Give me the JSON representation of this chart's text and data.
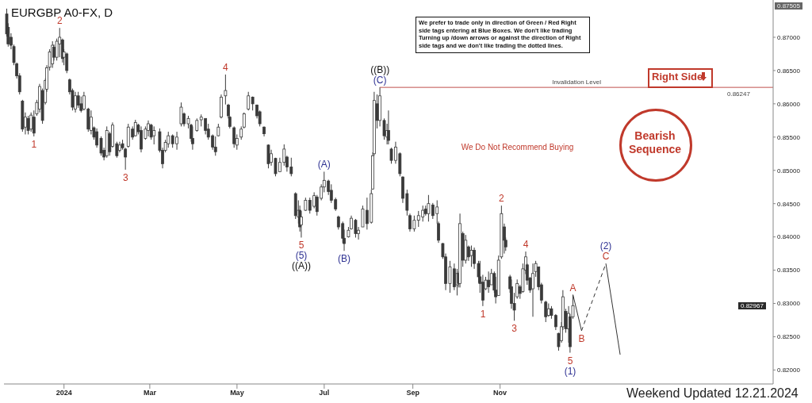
{
  "chart_data": {
    "type": "candlestick",
    "title": "EURGBP A0-FX, D",
    "color": "#3a3a3a",
    "x": [
      "2023-11-22",
      "2023-11-23",
      "2023-11-25",
      "2023-11-27",
      "2023-11-29",
      "2023-12-01",
      "2023-12-03",
      "2023-12-05",
      "2023-12-07",
      "2023-12-09",
      "2023-12-11",
      "2023-12-13",
      "2023-12-15",
      "2023-12-17",
      "2023-12-19",
      "2023-12-20",
      "2023-12-22",
      "2023-12-24",
      "2023-12-25",
      "2023-12-27",
      "2023-12-29",
      "2023-12-31",
      "2024-01-01",
      "2024-01-03",
      "2024-01-05",
      "2024-01-07",
      "2024-01-09",
      "2024-01-11",
      "2024-01-13",
      "2024-01-15",
      "2024-01-18",
      "2024-01-20",
      "2024-01-22",
      "2024-01-24",
      "2024-01-27",
      "2024-01-29",
      "2024-01-31",
      "2024-02-02",
      "2024-02-04",
      "2024-02-07",
      "2024-02-09",
      "2024-02-11",
      "2024-02-13",
      "2024-02-15",
      "2024-02-18",
      "2024-02-20",
      "2024-02-22",
      "2024-02-24",
      "2024-02-27",
      "2024-02-29",
      "2024-03-02",
      "2024-03-04",
      "2024-03-08",
      "2024-03-10",
      "2024-03-12",
      "2024-03-14",
      "2024-03-17",
      "2024-03-20",
      "2024-03-23",
      "2024-03-25",
      "2024-03-28",
      "2024-03-30",
      "2024-03-31",
      "2024-04-03",
      "2024-04-06",
      "2024-04-09",
      "2024-04-11",
      "2024-04-14",
      "2024-04-16",
      "2024-04-18",
      "2024-04-20",
      "2024-04-23",
      "2024-04-25",
      "2024-04-26",
      "2024-04-29",
      "2024-05-01",
      "2024-05-04",
      "2024-05-06",
      "2024-05-09",
      "2024-05-12",
      "2024-05-15",
      "2024-05-17",
      "2024-05-20",
      "2024-05-23",
      "2024-05-25",
      "2024-05-28",
      "2024-05-31",
      "2024-06-03",
      "2024-06-05",
      "2024-06-08",
      "2024-06-11",
      "2024-06-13",
      "2024-06-14",
      "2024-06-15",
      "2024-06-18",
      "2024-06-21",
      "2024-06-24",
      "2024-06-26",
      "2024-06-29",
      "2024-07-01",
      "2024-07-04",
      "2024-07-06",
      "2024-07-09",
      "2024-07-11",
      "2024-07-14",
      "2024-07-15",
      "2024-07-18",
      "2024-07-20",
      "2024-07-23",
      "2024-07-25",
      "2024-07-28",
      "2024-07-31",
      "2024-08-03",
      "2024-08-04",
      "2024-08-05",
      "2024-08-07",
      "2024-08-09",
      "2024-08-12",
      "2024-08-14",
      "2024-08-15",
      "2024-08-17",
      "2024-08-20",
      "2024-08-23",
      "2024-08-25",
      "2024-08-28",
      "2024-08-30",
      "2024-09-02",
      "2024-09-05",
      "2024-09-08",
      "2024-09-10",
      "2024-09-12",
      "2024-09-15",
      "2024-09-18",
      "2024-09-19",
      "2024-09-22",
      "2024-09-24",
      "2024-09-27",
      "2024-09-30",
      "2024-10-02",
      "2024-10-03",
      "2024-10-04",
      "2024-10-06",
      "2024-10-08",
      "2024-10-10",
      "2024-10-12",
      "2024-10-14",
      "2024-10-17",
      "2024-10-18",
      "2024-10-20",
      "2024-10-22",
      "2024-10-24",
      "2024-10-26",
      "2024-10-28",
      "2024-10-29",
      "2024-10-31",
      "2024-11-02",
      "2024-11-04",
      "2024-11-05",
      "2024-11-08",
      "2024-11-09",
      "2024-11-11",
      "2024-11-13",
      "2024-11-15",
      "2024-11-17",
      "2024-11-19",
      "2024-11-20",
      "2024-11-22",
      "2024-11-24",
      "2024-11-26",
      "2024-11-28",
      "2024-11-30",
      "2024-12-03",
      "2024-12-05",
      "2024-12-07",
      "2024-12-10",
      "2024-12-12",
      "2024-12-14",
      "2024-12-15",
      "2024-12-17",
      "2024-12-19",
      "2024-12-20",
      "2024-12-22"
    ],
    "ohlc": [
      [
        0.8735,
        0.8743,
        0.8701,
        0.8705
      ],
      [
        0.8715,
        0.8721,
        0.8686,
        0.869
      ],
      [
        0.87,
        0.8706,
        0.8682,
        0.8688
      ],
      [
        0.8686,
        0.8689,
        0.8658,
        0.8662
      ],
      [
        0.866,
        0.8662,
        0.8638,
        0.8642
      ],
      [
        0.8642,
        0.8646,
        0.8614,
        0.8618
      ],
      [
        0.8604,
        0.8606,
        0.8558,
        0.8562
      ],
      [
        0.8565,
        0.8587,
        0.8554,
        0.858
      ],
      [
        0.8578,
        0.8582,
        0.8554,
        0.856
      ],
      [
        0.8562,
        0.8587,
        0.8558,
        0.8583
      ],
      [
        0.858,
        0.859,
        0.8551,
        0.8556
      ],
      [
        0.8585,
        0.8606,
        0.8582,
        0.8602
      ],
      [
        0.8592,
        0.863,
        0.8587,
        0.8626
      ],
      [
        0.862,
        0.8623,
        0.857,
        0.8575
      ],
      [
        0.8602,
        0.8638,
        0.8599,
        0.8635
      ],
      [
        0.8622,
        0.8658,
        0.8618,
        0.8654
      ],
      [
        0.8655,
        0.8682,
        0.865,
        0.8678
      ],
      [
        0.866,
        0.8694,
        0.8654,
        0.8688
      ],
      [
        0.8685,
        0.8689,
        0.8665,
        0.867
      ],
      [
        0.867,
        0.8698,
        0.8665,
        0.8694
      ],
      [
        0.869,
        0.8714,
        0.867,
        0.87
      ],
      [
        0.8696,
        0.8698,
        0.8662,
        0.8668
      ],
      [
        0.867,
        0.8682,
        0.8658,
        0.8678
      ],
      [
        0.8675,
        0.8677,
        0.8646,
        0.865
      ],
      [
        0.8636,
        0.8638,
        0.8614,
        0.8618
      ],
      [
        0.862,
        0.8623,
        0.859,
        0.8595
      ],
      [
        0.8592,
        0.8618,
        0.8587,
        0.8612
      ],
      [
        0.8612,
        0.8618,
        0.8594,
        0.8598
      ],
      [
        0.86,
        0.8611,
        0.8587,
        0.859
      ],
      [
        0.8592,
        0.8618,
        0.859,
        0.8612
      ],
      [
        0.8592,
        0.8594,
        0.8558,
        0.8562
      ],
      [
        0.856,
        0.859,
        0.8554,
        0.858
      ],
      [
        0.8564,
        0.8566,
        0.8546,
        0.855
      ],
      [
        0.8558,
        0.8563,
        0.8534,
        0.8538
      ],
      [
        0.8548,
        0.8551,
        0.8522,
        0.8526
      ],
      [
        0.853,
        0.8534,
        0.8515,
        0.852
      ],
      [
        0.8522,
        0.8566,
        0.8519,
        0.856
      ],
      [
        0.8555,
        0.8558,
        0.8522,
        0.8528
      ],
      [
        0.8536,
        0.8572,
        0.8534,
        0.8568
      ],
      [
        0.854,
        0.8543,
        0.8519,
        0.8522
      ],
      [
        0.853,
        0.8543,
        0.8527,
        0.8538
      ],
      [
        0.854,
        0.8546,
        0.8531,
        0.8534
      ],
      [
        0.8532,
        0.8534,
        0.8501,
        0.852
      ],
      [
        0.8536,
        0.857,
        0.8534,
        0.8565
      ],
      [
        0.8562,
        0.8566,
        0.8546,
        0.855
      ],
      [
        0.8552,
        0.8576,
        0.8551,
        0.8572
      ],
      [
        0.8568,
        0.857,
        0.8554,
        0.8558
      ],
      [
        0.856,
        0.8566,
        0.8527,
        0.8532
      ],
      [
        0.8548,
        0.8566,
        0.8546,
        0.8562
      ],
      [
        0.856,
        0.8575,
        0.8551,
        0.857
      ],
      [
        0.8568,
        0.857,
        0.8546,
        0.855
      ],
      [
        0.8552,
        0.8566,
        0.8539,
        0.856
      ],
      [
        0.8558,
        0.8563,
        0.8527,
        0.853
      ],
      [
        0.853,
        0.8534,
        0.8503,
        0.851
      ],
      [
        0.853,
        0.8546,
        0.8527,
        0.8542
      ],
      [
        0.854,
        0.8558,
        0.8534,
        0.8552
      ],
      [
        0.8552,
        0.8554,
        0.8534,
        0.854
      ],
      [
        0.854,
        0.8558,
        0.8531,
        0.855
      ],
      [
        0.857,
        0.8602,
        0.8566,
        0.8595
      ],
      [
        0.8585,
        0.8587,
        0.8566,
        0.857
      ],
      [
        0.857,
        0.8582,
        0.8563,
        0.8578
      ],
      [
        0.8568,
        0.857,
        0.8543,
        0.8548
      ],
      [
        0.8548,
        0.8566,
        0.8531,
        0.854
      ],
      [
        0.856,
        0.8578,
        0.8558,
        0.8575
      ],
      [
        0.8576,
        0.8584,
        0.8566,
        0.858
      ],
      [
        0.8578,
        0.8578,
        0.8554,
        0.856
      ],
      [
        0.8562,
        0.857,
        0.8546,
        0.855
      ],
      [
        0.8552,
        0.8554,
        0.8531,
        0.8535
      ],
      [
        0.8535,
        0.8551,
        0.8522,
        0.8528
      ],
      [
        0.8552,
        0.857,
        0.8551,
        0.8565
      ],
      [
        0.858,
        0.8614,
        0.8578,
        0.861
      ],
      [
        0.8612,
        0.8644,
        0.8599,
        0.862
      ],
      [
        0.8598,
        0.86,
        0.8578,
        0.8582
      ],
      [
        0.858,
        0.8582,
        0.8563,
        0.8566
      ],
      [
        0.8564,
        0.8566,
        0.8534,
        0.854
      ],
      [
        0.8538,
        0.8554,
        0.8531,
        0.8548
      ],
      [
        0.855,
        0.8566,
        0.8546,
        0.8562
      ],
      [
        0.8565,
        0.8587,
        0.8563,
        0.8585
      ],
      [
        0.8592,
        0.8618,
        0.859,
        0.8612
      ],
      [
        0.861,
        0.8611,
        0.859,
        0.86
      ],
      [
        0.8598,
        0.8599,
        0.8578,
        0.8582
      ],
      [
        0.8588,
        0.859,
        0.8566,
        0.857
      ],
      [
        0.8565,
        0.8566,
        0.8551,
        0.8555
      ],
      [
        0.8538,
        0.8539,
        0.8503,
        0.851
      ],
      [
        0.8512,
        0.8531,
        0.8507,
        0.8525
      ],
      [
        0.8518,
        0.8519,
        0.8491,
        0.8495
      ],
      [
        0.8498,
        0.8519,
        0.8498,
        0.8512
      ],
      [
        0.8512,
        0.8539,
        0.8507,
        0.8532
      ],
      [
        0.852,
        0.8522,
        0.8498,
        0.8505
      ],
      [
        0.8505,
        0.8519,
        0.8491,
        0.8495
      ],
      [
        0.8465,
        0.8467,
        0.8427,
        0.8432
      ],
      [
        0.843,
        0.8455,
        0.842,
        0.844
      ],
      [
        0.844,
        0.8447,
        0.8408,
        0.8415
      ],
      [
        0.8418,
        0.8439,
        0.8399,
        0.843
      ],
      [
        0.844,
        0.8459,
        0.8439,
        0.8455
      ],
      [
        0.8455,
        0.8459,
        0.8435,
        0.844
      ],
      [
        0.8446,
        0.8467,
        0.8443,
        0.8462
      ],
      [
        0.846,
        0.8463,
        0.8432,
        0.8438
      ],
      [
        0.8458,
        0.8479,
        0.8455,
        0.8475
      ],
      [
        0.8475,
        0.8498,
        0.8467,
        0.8485
      ],
      [
        0.8484,
        0.8486,
        0.8463,
        0.8468
      ],
      [
        0.847,
        0.8479,
        0.8451,
        0.8455
      ],
      [
        0.8456,
        0.8459,
        0.8439,
        0.8442
      ],
      [
        0.843,
        0.8432,
        0.8411,
        0.8415
      ],
      [
        0.842,
        0.8423,
        0.8391,
        0.8398
      ],
      [
        0.8398,
        0.8411,
        0.8379,
        0.839
      ],
      [
        0.84,
        0.8415,
        0.8399,
        0.841
      ],
      [
        0.8412,
        0.8432,
        0.8411,
        0.8428
      ],
      [
        0.8425,
        0.8427,
        0.8399,
        0.8405
      ],
      [
        0.8405,
        0.8415,
        0.8396,
        0.841
      ],
      [
        0.8415,
        0.8447,
        0.8415,
        0.8442
      ],
      [
        0.844,
        0.8459,
        0.8411,
        0.842
      ],
      [
        0.8422,
        0.8471,
        0.842,
        0.8465
      ],
      [
        0.8472,
        0.8527,
        0.8471,
        0.8522
      ],
      [
        0.8525,
        0.8618,
        0.8522,
        0.8605
      ],
      [
        0.86,
        0.8614,
        0.8563,
        0.8575
      ],
      [
        0.8575,
        0.8625,
        0.8566,
        0.8612
      ],
      [
        0.8575,
        0.8578,
        0.8546,
        0.8552
      ],
      [
        0.855,
        0.857,
        0.8539,
        0.856
      ],
      [
        0.856,
        0.859,
        0.8539,
        0.8545
      ],
      [
        0.8532,
        0.8534,
        0.851,
        0.8515
      ],
      [
        0.8515,
        0.8543,
        0.851,
        0.8535
      ],
      [
        0.8525,
        0.8527,
        0.8491,
        0.8495
      ],
      [
        0.849,
        0.8491,
        0.8451,
        0.8458
      ],
      [
        0.8465,
        0.8471,
        0.8432,
        0.844
      ],
      [
        0.8432,
        0.8435,
        0.8408,
        0.8412
      ],
      [
        0.8412,
        0.8432,
        0.8408,
        0.8425
      ],
      [
        0.8425,
        0.8439,
        0.8415,
        0.8432
      ],
      [
        0.843,
        0.8447,
        0.8423,
        0.844
      ],
      [
        0.8442,
        0.8447,
        0.8432,
        0.8435
      ],
      [
        0.8435,
        0.8463,
        0.8423,
        0.845
      ],
      [
        0.8448,
        0.8451,
        0.8427,
        0.8432
      ],
      [
        0.8435,
        0.8455,
        0.842,
        0.8445
      ],
      [
        0.842,
        0.8423,
        0.8391,
        0.8395
      ],
      [
        0.839,
        0.8391,
        0.8367,
        0.837
      ],
      [
        0.837,
        0.8375,
        0.832,
        0.833
      ],
      [
        0.833,
        0.8364,
        0.8316,
        0.8355
      ],
      [
        0.8352,
        0.836,
        0.832,
        0.8325
      ],
      [
        0.8328,
        0.8352,
        0.8312,
        0.8345
      ],
      [
        0.8345,
        0.8348,
        0.8324,
        0.833
      ],
      [
        0.833,
        0.8435,
        0.8324,
        0.842
      ],
      [
        0.8405,
        0.8408,
        0.8355,
        0.8365
      ],
      [
        0.8365,
        0.8403,
        0.836,
        0.8395
      ],
      [
        0.8385,
        0.8387,
        0.8364,
        0.837
      ],
      [
        0.8372,
        0.8387,
        0.8355,
        0.838
      ],
      [
        0.838,
        0.8384,
        0.8352,
        0.836
      ],
      [
        0.836,
        0.8364,
        0.8331,
        0.834
      ],
      [
        0.834,
        0.8364,
        0.8316,
        0.833
      ],
      [
        0.8332,
        0.8343,
        0.8296,
        0.8305
      ],
      [
        0.8322,
        0.834,
        0.832,
        0.8335
      ],
      [
        0.8335,
        0.8348,
        0.8316,
        0.8325
      ],
      [
        0.8328,
        0.8352,
        0.8328,
        0.8345
      ],
      [
        0.8345,
        0.8348,
        0.8316,
        0.832
      ],
      [
        0.832,
        0.834,
        0.83,
        0.831
      ],
      [
        0.8312,
        0.8372,
        0.8312,
        0.8365
      ],
      [
        0.837,
        0.8447,
        0.8367,
        0.8435
      ],
      [
        0.8415,
        0.842,
        0.8375,
        0.8395
      ],
      [
        0.8395,
        0.8399,
        0.8379,
        0.8385
      ],
      [
        0.834,
        0.8343,
        0.8316,
        0.8322
      ],
      [
        0.8325,
        0.8336,
        0.8292,
        0.83
      ],
      [
        0.83,
        0.8316,
        0.8274,
        0.829
      ],
      [
        0.831,
        0.8336,
        0.8307,
        0.833
      ],
      [
        0.8325,
        0.8328,
        0.8307,
        0.8315
      ],
      [
        0.8318,
        0.836,
        0.8316,
        0.8352
      ],
      [
        0.835,
        0.8378,
        0.8344,
        0.837
      ],
      [
        0.8358,
        0.836,
        0.8328,
        0.8335
      ],
      [
        0.8338,
        0.834,
        0.8316,
        0.832
      ],
      [
        0.8322,
        0.836,
        0.828,
        0.8345
      ],
      [
        0.8348,
        0.8364,
        0.834,
        0.836
      ],
      [
        0.8355,
        0.8355,
        0.832,
        0.8325
      ],
      [
        0.8328,
        0.8331,
        0.83,
        0.8305
      ],
      [
        0.8302,
        0.8304,
        0.8272,
        0.828
      ],
      [
        0.8282,
        0.83,
        0.828,
        0.8292
      ],
      [
        0.8292,
        0.8296,
        0.8277,
        0.8282
      ],
      [
        0.8282,
        0.8284,
        0.826,
        0.8265
      ],
      [
        0.8255,
        0.8256,
        0.8229,
        0.8235
      ],
      [
        0.8244,
        0.8272,
        0.8241,
        0.8265
      ],
      [
        0.8265,
        0.832,
        0.826,
        0.831
      ],
      [
        0.8288,
        0.8292,
        0.8256,
        0.8262
      ],
      [
        0.8262,
        0.8296,
        0.8241,
        0.8285
      ],
      [
        0.828,
        0.8284,
        0.8226,
        0.8235
      ],
      [
        0.828,
        0.8313,
        0.8277,
        0.82967
      ]
    ],
    "series": [
      {
        "type": "line",
        "color": "#333333",
        "line_style": "solid",
        "x": [
          "2024-12-22",
          "2024-12-28"
        ],
        "values": [
          0.8313,
          0.8259
        ]
      },
      {
        "type": "line",
        "color": "#333333",
        "line_style": "dashed",
        "x": [
          "2024-12-28",
          "2025-01-14"
        ],
        "values": [
          0.8259,
          0.836
        ]
      },
      {
        "type": "line",
        "color": "#333333",
        "line_style": "solid",
        "x": [
          "2025-01-14",
          "2025-01-24"
        ],
        "values": [
          0.836,
          0.8223
        ]
      }
    ],
    "xlim": [
      "2023-11-20",
      "2025-05-11"
    ],
    "xticks": [
      {
        "value": "2024-01-01",
        "label": "2024"
      },
      {
        "value": "2024-03-01",
        "label": "Mar"
      },
      {
        "value": "2024-05-01",
        "label": "May"
      },
      {
        "value": "2024-07-01",
        "label": "Jul"
      },
      {
        "value": "2024-09-01",
        "label": "Sep"
      },
      {
        "value": "2024-11-01",
        "label": "Nov"
      }
    ],
    "ylim": [
      0.8179,
      0.8756
    ],
    "yticks": [
      {
        "value": 0.82,
        "label": "0.82000"
      },
      {
        "value": 0.825,
        "label": "0.82500"
      },
      {
        "value": 0.83,
        "label": "0.83000"
      },
      {
        "value": 0.835,
        "label": "0.83500"
      },
      {
        "value": 0.84,
        "label": "0.84000"
      },
      {
        "value": 0.845,
        "label": "0.84500"
      },
      {
        "value": 0.85,
        "label": "0.85000"
      },
      {
        "value": 0.855,
        "label": "0.85500"
      },
      {
        "value": 0.86,
        "label": "0.86000"
      },
      {
        "value": 0.865,
        "label": "0.86500"
      },
      {
        "value": 0.87,
        "label": "0.87000"
      }
    ],
    "ref_lines": [
      {
        "axis": "y",
        "value": 0.86247,
        "label": "Invalidation Level",
        "color": "#c0504d"
      }
    ],
    "annotations": [
      "We prefer to trade only in direction of Green / Red Right side tags entering at Blue Boxes. We don't like trading Turning up /down arrows or against the direction of Right side tags and we don't like trading the dotted lines.",
      "We Do Not Recommend Buying",
      "Right Side",
      "Bearish Sequence",
      "Weekend Updated 12.21.2024",
      {
        "text": "1",
        "x": "2023-12-11",
        "y": 0.8551
      },
      {
        "text": "2",
        "x": "2023-12-29",
        "y": 0.8714
      },
      {
        "text": "3",
        "x": "2024-02-13",
        "y": 0.8501
      },
      {
        "text": "4",
        "x": "2024-04-23",
        "y": 0.8644
      },
      {
        "text": "5",
        "x": "2024-06-15",
        "y": 0.8399
      },
      {
        "text": "(5)",
        "x": "2024-06-15",
        "y": 0.8399
      },
      {
        "text": "((A))",
        "x": "2024-06-15",
        "y": 0.8399
      },
      {
        "text": "(A)",
        "x": "2024-07-01",
        "y": 0.8498
      },
      {
        "text": "(B)",
        "x": "2024-07-15",
        "y": 0.8379
      },
      {
        "text": "(C)",
        "x": "2024-08-09",
        "y": 0.8625
      },
      {
        "text": "((B))",
        "x": "2024-08-09",
        "y": 0.8625
      },
      {
        "text": "1",
        "x": "2024-10-20",
        "y": 0.8296
      },
      {
        "text": "2",
        "x": "2024-11-02",
        "y": 0.8447
      },
      {
        "text": "3",
        "x": "2024-11-11",
        "y": 0.8274
      },
      {
        "text": "4",
        "x": "2024-11-19",
        "y": 0.8378
      },
      {
        "text": "5",
        "x": "2024-12-20",
        "y": 0.8226
      },
      {
        "text": "(1)",
        "x": "2024-12-20",
        "y": 0.8226
      },
      {
        "text": "A",
        "x": "2024-12-22",
        "y": 0.8313
      },
      {
        "text": "B",
        "x": "2024-12-28",
        "y": 0.8259
      },
      {
        "text": "C",
        "x": "2025-01-14",
        "y": 0.836
      },
      {
        "text": "(2)",
        "x": "2025-01-14",
        "y": 0.836
      },
      {
        "text": "0.86247",
        "y": 0.86247
      },
      "0.87505",
      "0.82967"
    ]
  }
}
